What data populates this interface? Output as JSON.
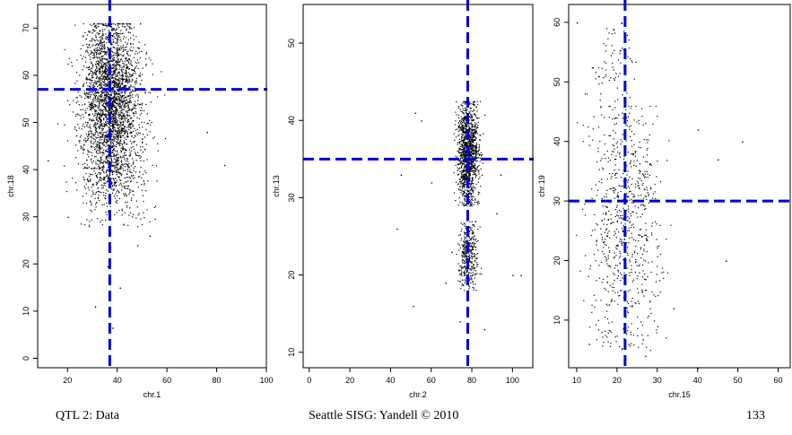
{
  "footer": {
    "left": "QTL 2: Data",
    "center": "Seattle SISG: Yandell © 2010",
    "right": "133"
  },
  "colors": {
    "points": "#000000",
    "reference_lines": "#0000dd",
    "frame": "#000000"
  },
  "chart_data": [
    {
      "type": "scatter",
      "xlabel": "chr.1",
      "ylabel": "chr.18",
      "xlim": [
        8,
        100
      ],
      "ylim": [
        -2,
        75
      ],
      "xticks": [
        20,
        40,
        60,
        80,
        100
      ],
      "yticks": [
        0,
        10,
        20,
        30,
        40,
        50,
        60,
        70
      ],
      "reference_lines": {
        "x": 37,
        "y": 57
      },
      "clusters": [
        {
          "x_center": 37,
          "x_spread": 7,
          "y_min": 35,
          "y_max": 71,
          "y_center": 57,
          "n": 2200
        },
        {
          "x_center": 38,
          "x_spread": 10,
          "y_min": 28,
          "y_max": 66,
          "y_center": 48,
          "n": 900
        }
      ],
      "outliers": [
        [
          38,
          6.5
        ],
        [
          36,
          19.5
        ],
        [
          41,
          15
        ],
        [
          48,
          24
        ],
        [
          53,
          26
        ],
        [
          83,
          41
        ],
        [
          76,
          48
        ],
        [
          31,
          11
        ],
        [
          12,
          42
        ],
        [
          20,
          30
        ]
      ]
    },
    {
      "type": "scatter",
      "xlabel": "chr.2",
      "ylabel": "chr.13",
      "xlim": [
        -3,
        110
      ],
      "ylim": [
        8,
        55
      ],
      "xticks": [
        0,
        20,
        40,
        60,
        80,
        100
      ],
      "yticks": [
        10,
        20,
        30,
        40,
        50
      ],
      "reference_lines": {
        "x": 78,
        "y": 35
      },
      "clusters": [
        {
          "x_center": 78,
          "x_spread": 3.5,
          "y_min": 29,
          "y_max": 42.5,
          "y_center": 36,
          "n": 1300
        },
        {
          "x_center": 78,
          "x_spread": 3,
          "y_min": 18,
          "y_max": 27,
          "y_center": 22.5,
          "n": 380
        }
      ],
      "outliers": [
        [
          52,
          41
        ],
        [
          55,
          40
        ],
        [
          43,
          26
        ],
        [
          51,
          16
        ],
        [
          45,
          33
        ],
        [
          60,
          32
        ],
        [
          94,
          33
        ],
        [
          100,
          20
        ],
        [
          104,
          20
        ],
        [
          67,
          19
        ],
        [
          70,
          23
        ],
        [
          92,
          28
        ],
        [
          74,
          14
        ],
        [
          86,
          13
        ]
      ]
    },
    {
      "type": "scatter",
      "xlabel": "chr.15",
      "ylabel": "chr.19",
      "xlim": [
        8,
        63
      ],
      "ylim": [
        2,
        63
      ],
      "xticks": [
        10,
        20,
        30,
        40,
        50,
        60
      ],
      "yticks": [
        10,
        20,
        30,
        40,
        50,
        60
      ],
      "reference_lines": {
        "x": 22,
        "y": 30
      },
      "clusters": [
        {
          "x_center": 22,
          "x_spread": 5.5,
          "y_min": 5,
          "y_max": 46,
          "y_center": 27,
          "n": 720
        },
        {
          "x_center": 19,
          "x_spread": 3.5,
          "y_min": 44,
          "y_max": 60,
          "y_center": 52,
          "n": 80
        }
      ],
      "outliers": [
        [
          47,
          20
        ],
        [
          51,
          40
        ],
        [
          45,
          37
        ],
        [
          40,
          42
        ],
        [
          40,
          2
        ],
        [
          27,
          4
        ],
        [
          13,
          6
        ],
        [
          10,
          60
        ],
        [
          34,
          12
        ],
        [
          30,
          9
        ]
      ]
    }
  ]
}
